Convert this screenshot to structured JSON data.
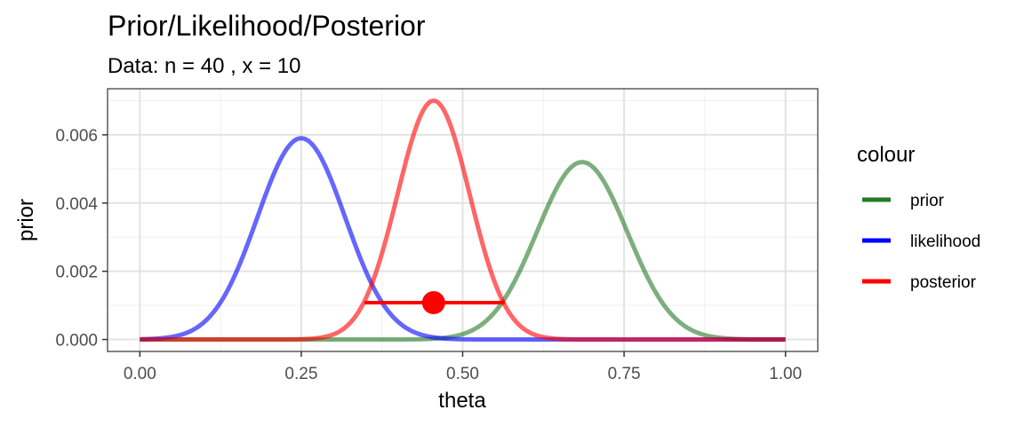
{
  "chart_data": {
    "type": "line",
    "title": "Prior/Likelihood/Posterior",
    "subtitle": "Data: n = 40 , x = 10",
    "xlabel": "theta",
    "ylabel": "prior",
    "xlim": [
      -0.05,
      1.05
    ],
    "ylim": [
      -0.00035,
      0.00735
    ],
    "x_ticks": [
      0.0,
      0.25,
      0.5,
      0.75,
      1.0
    ],
    "x_tick_labels": [
      "0.00",
      "0.25",
      "0.50",
      "0.75",
      "1.00"
    ],
    "y_ticks": [
      0.0,
      0.002,
      0.004,
      0.006
    ],
    "y_tick_labels": [
      "0.000",
      "0.002",
      "0.004",
      "0.006"
    ],
    "grid": true,
    "legend_placement": "right",
    "legend_title": "colour",
    "series": [
      {
        "name": "prior",
        "color": "#267a26",
        "mean": 0.685,
        "sd": 0.07,
        "peak": 0.0052
      },
      {
        "name": "likelihood",
        "color": "#0000ff",
        "mean": 0.25,
        "sd": 0.068,
        "peak": 0.0059
      },
      {
        "name": "posterior",
        "color": "#ff0000",
        "mean": 0.455,
        "sd": 0.056,
        "peak": 0.007
      }
    ],
    "interval": {
      "series": "posterior",
      "color": "#ff0000",
      "lower": 0.348,
      "upper": 0.565,
      "point": 0.455,
      "y": 0.00108
    }
  }
}
